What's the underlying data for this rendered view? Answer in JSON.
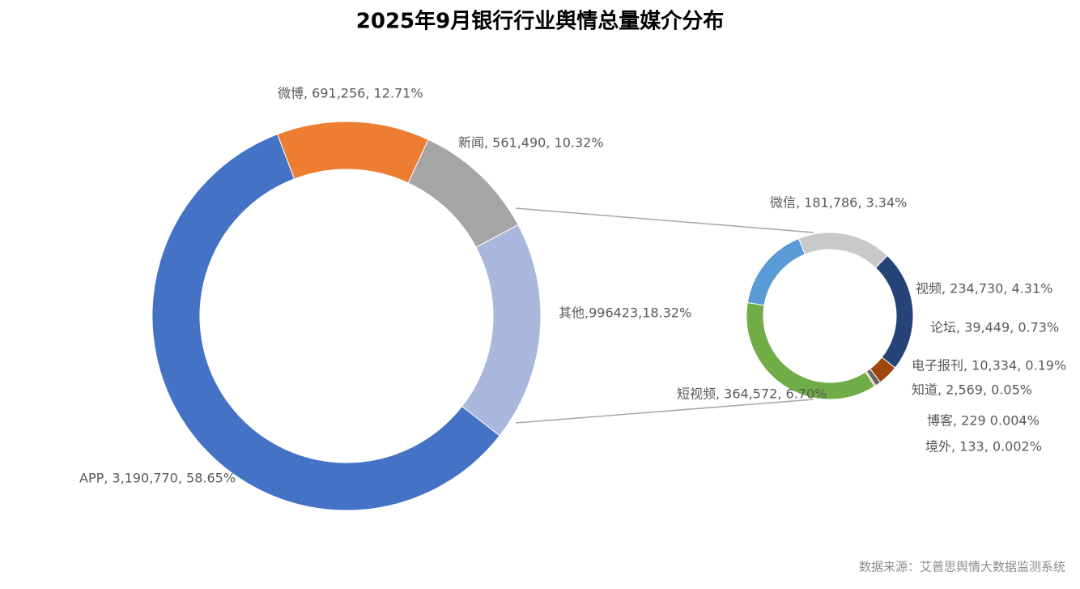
{
  "chart_data": [
    {
      "type": "donut",
      "title": "2025年9月银行行业舆情总量媒介分布",
      "source": "数据来源：艾普思舆情大数据监测系统",
      "categories": [
        "APP",
        "微博",
        "新闻",
        "其他"
      ],
      "values": [
        3190770,
        691256,
        561490,
        996423
      ],
      "value_labels": [
        "APP, 3,190,770, 58.65%",
        "微博, 691,256, 12.71%",
        "新闻, 561,490, 10.32%",
        "其他,996423,18.32%"
      ],
      "colors": [
        "#4472c4",
        "#ed7d31",
        "#a5a5a5",
        "#a9b7dc"
      ]
    },
    {
      "type": "donut",
      "categories": [
        "微信",
        "视频",
        "论坛",
        "电子报刊",
        "知道",
        "博客",
        "境外",
        "短视频",
        null
      ],
      "values": [
        181786,
        234730,
        39449,
        10334,
        2569,
        229,
        133,
        364572,
        162621
      ],
      "value_labels": [
        "微信, 181,786, 3.34%",
        "视频, 234,730, 4.31%",
        "论坛, 39,449, 0.73%",
        "电子报刊, 10,334, 0.19%",
        "知道, 2,569, 0.05%",
        "博客, 229 0.004%",
        "境外, 133, 0.002%",
        "短视频, 364,572, 6.70%",
        null
      ],
      "colors": [
        "#c9c9c9",
        "#264478",
        "#9e480e",
        "#636363",
        "#997300",
        "#5b9bd5",
        "#43682b",
        "#70ad47",
        "#5b9bd5"
      ]
    }
  ]
}
